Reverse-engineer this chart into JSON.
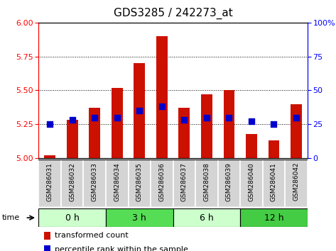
{
  "title": "GDS3285 / 242273_at",
  "samples": [
    "GSM286031",
    "GSM286032",
    "GSM286033",
    "GSM286034",
    "GSM286035",
    "GSM286036",
    "GSM286037",
    "GSM286038",
    "GSM286039",
    "GSM286040",
    "GSM286041",
    "GSM286042"
  ],
  "transformed_count": [
    5.02,
    5.28,
    5.37,
    5.52,
    5.7,
    5.9,
    5.37,
    5.47,
    5.5,
    5.18,
    5.13,
    5.4
  ],
  "percentile_rank": [
    25,
    28,
    30,
    30,
    35,
    38,
    28,
    30,
    30,
    27,
    25,
    30
  ],
  "groups": [
    {
      "label": "0 h",
      "start": 0,
      "end": 3,
      "color": "#ccffcc"
    },
    {
      "label": "3 h",
      "start": 3,
      "end": 6,
      "color": "#55dd55"
    },
    {
      "label": "6 h",
      "start": 6,
      "end": 9,
      "color": "#ccffcc"
    },
    {
      "label": "12 h",
      "start": 9,
      "end": 12,
      "color": "#44cc44"
    }
  ],
  "y_min": 5.0,
  "y_max": 6.0,
  "y_ticks_left": [
    5.0,
    5.25,
    5.5,
    5.75,
    6.0
  ],
  "y_ticks_right": [
    0,
    25,
    50,
    75,
    100
  ],
  "bar_color": "#cc1100",
  "dot_color": "#0000cc",
  "bar_width": 0.5,
  "dot_size": 30,
  "title_fontsize": 11,
  "tick_fontsize": 8,
  "sample_fontsize": 6.5,
  "legend_fontsize": 8,
  "group_fontsize": 9
}
